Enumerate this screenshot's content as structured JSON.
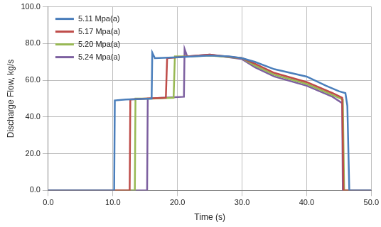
{
  "chart_data": {
    "type": "line",
    "x_label": "Time (s)",
    "y_label": "Discharge Flow, kg/s",
    "xlim": [
      0,
      50
    ],
    "ylim": [
      0,
      100
    ],
    "xticks": [
      {
        "value": 0,
        "label": "0.0"
      },
      {
        "value": 10,
        "label": "10.0"
      },
      {
        "value": 20,
        "label": "20.0"
      },
      {
        "value": 30,
        "label": "30.0"
      },
      {
        "value": 40,
        "label": "40.0"
      },
      {
        "value": 50,
        "label": "50.0"
      }
    ],
    "yticks": [
      {
        "value": 0,
        "label": "0.0"
      },
      {
        "value": 20,
        "label": "20.0"
      },
      {
        "value": 40,
        "label": "40.0"
      },
      {
        "value": 60,
        "label": "60.0"
      },
      {
        "value": 80,
        "label": "80.0"
      },
      {
        "value": 100,
        "label": "100.0"
      }
    ],
    "grid": true,
    "legend": "upper left",
    "series": [
      {
        "name": "5.11 Mpa(a)",
        "color": "#4a7ebb",
        "x": [
          0,
          10.2,
          10.3,
          12,
          16,
          16.1,
          16.5,
          20,
          25,
          28,
          30,
          32,
          35,
          40,
          43,
          45,
          46,
          46.3,
          46.6,
          50
        ],
        "values": [
          0,
          0,
          49,
          49.5,
          50,
          75,
          72,
          72.5,
          73.5,
          73,
          72,
          70,
          66,
          62,
          57,
          54,
          53,
          46,
          0,
          0
        ]
      },
      {
        "name": "5.17 Mpa(a)",
        "color": "#be4b48",
        "x": [
          0,
          12.6,
          12.7,
          15,
          18.2,
          18.4,
          20,
          25,
          30,
          32,
          35,
          40,
          44,
          45.5,
          45.7,
          50
        ],
        "values": [
          0,
          0,
          49.5,
          50,
          50.5,
          72,
          72.5,
          74,
          72,
          69,
          64,
          59,
          53,
          50.5,
          0,
          0
        ]
      },
      {
        "name": "5.20 Mpa(a)",
        "color": "#98b954",
        "x": [
          0,
          13.4,
          13.5,
          16,
          19.4,
          19.6,
          22,
          25,
          30,
          32,
          35,
          40,
          44,
          45.6,
          45.8,
          50
        ],
        "values": [
          0,
          0,
          50,
          50,
          50.5,
          73,
          73,
          73.5,
          72,
          68,
          63,
          58,
          52,
          49.5,
          0,
          0
        ]
      },
      {
        "name": "5.24 Mpa(a)",
        "color": "#7d60a0",
        "x": [
          0,
          15.3,
          15.4,
          18,
          21,
          21.1,
          21.5,
          25,
          30,
          32,
          35,
          40,
          44,
          45.5,
          45.6,
          50
        ],
        "values": [
          0,
          0,
          50,
          50.5,
          51,
          77,
          73,
          74,
          71.5,
          67,
          62,
          57,
          51,
          47.5,
          0,
          0
        ]
      }
    ]
  }
}
